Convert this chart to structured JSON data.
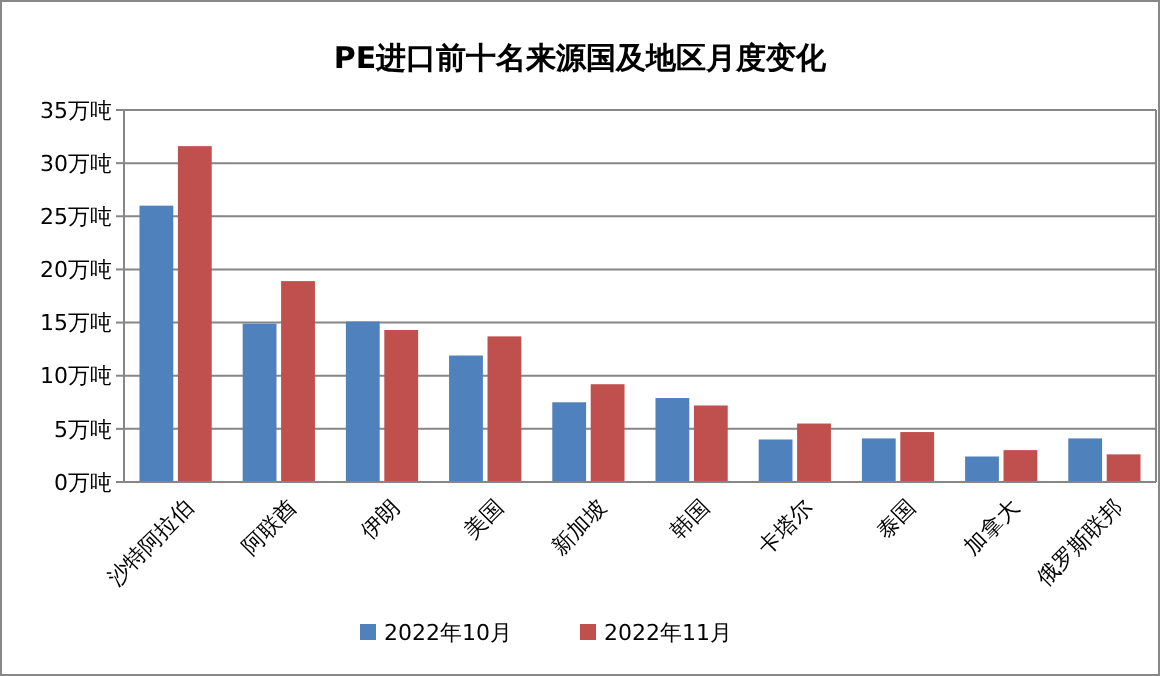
{
  "chart_data": {
    "type": "bar",
    "title": "PE进口前十名来源国及地区月度变化",
    "categories": [
      "沙特阿拉伯",
      "阿联酋",
      "伊朗",
      "美国",
      "新加坡",
      "韩国",
      "卡塔尔",
      "泰国",
      "加拿大",
      "俄罗斯联邦"
    ],
    "series": [
      {
        "name": "2022年10月",
        "color": "#4f81bd",
        "values": [
          26.0,
          14.9,
          15.1,
          11.9,
          7.5,
          7.9,
          4.0,
          4.1,
          2.4,
          4.1
        ]
      },
      {
        "name": "2022年11月",
        "color": "#c0504d",
        "values": [
          31.6,
          18.9,
          14.3,
          13.7,
          9.2,
          7.2,
          5.5,
          4.7,
          3.0,
          2.6
        ]
      }
    ],
    "ylim": [
      0,
      35
    ],
    "yticks": [
      {
        "value": 0,
        "label": "0万吨"
      },
      {
        "value": 5,
        "label": "5万吨"
      },
      {
        "value": 10,
        "label": "10万吨"
      },
      {
        "value": 15,
        "label": "15万吨"
      },
      {
        "value": 20,
        "label": "20万吨"
      },
      {
        "value": 25,
        "label": "25万吨"
      },
      {
        "value": 30,
        "label": "30万吨"
      },
      {
        "value": 35,
        "label": "35万吨"
      }
    ],
    "grid": "y",
    "legend": "bottom"
  }
}
